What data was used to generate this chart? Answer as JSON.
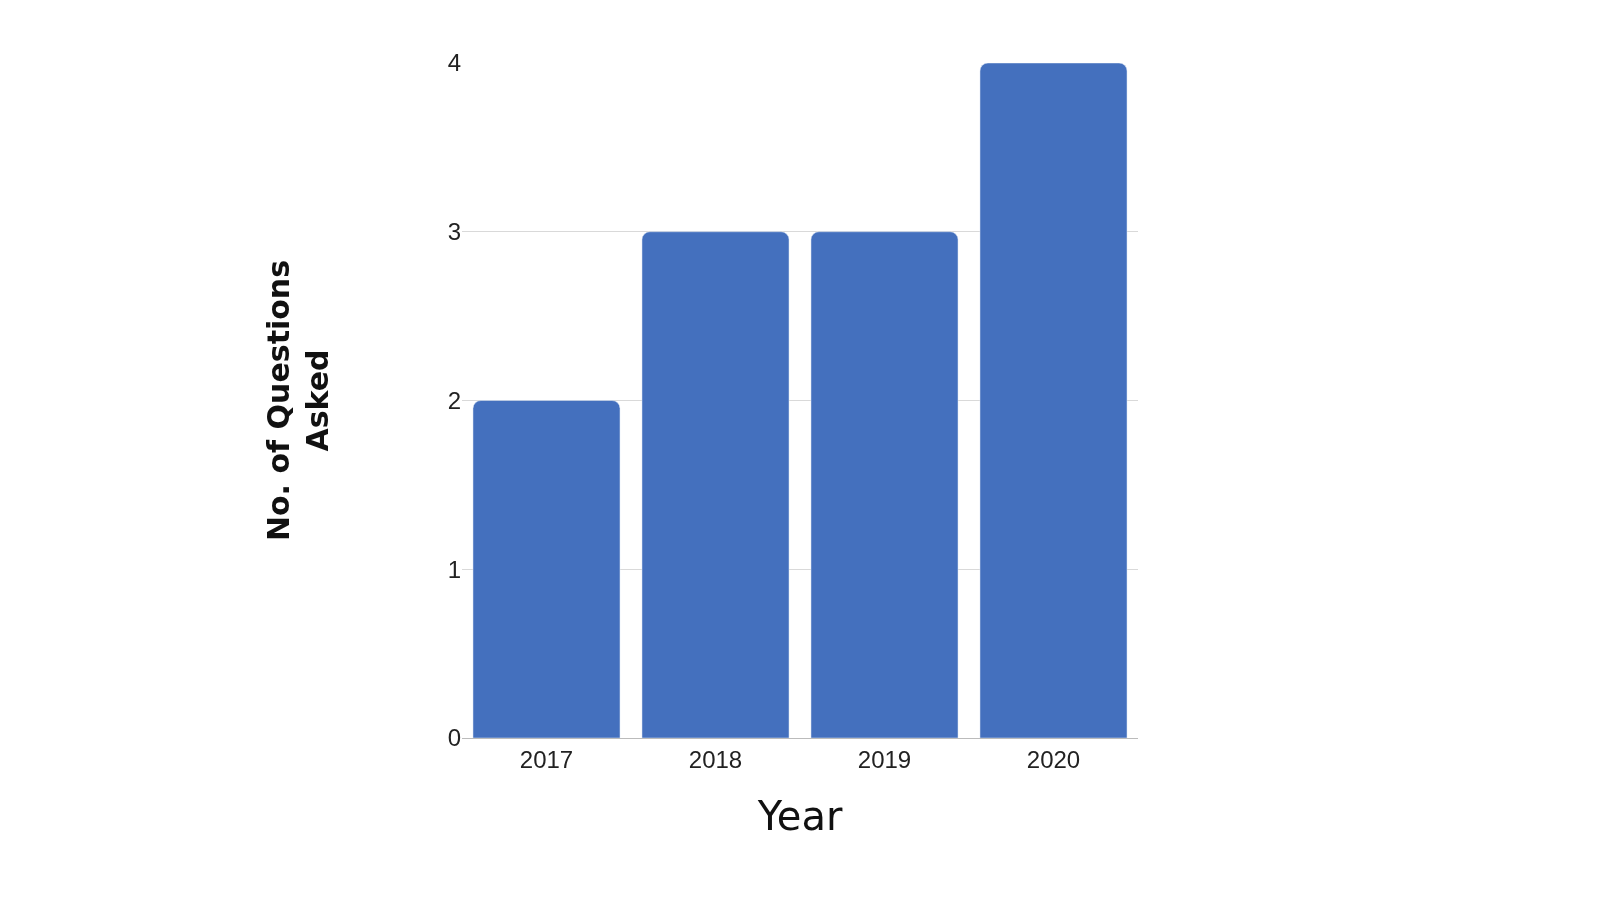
{
  "chart_data": {
    "type": "bar",
    "xlabel": "Year",
    "ylabel": "No. of Questions Asked",
    "categories": [
      "2017",
      "2018",
      "2019",
      "2020"
    ],
    "values": [
      2,
      3,
      3,
      4
    ],
    "color": "#4470be",
    "ylim": [
      0,
      4
    ],
    "yticks": [
      0,
      1,
      2,
      3,
      4
    ],
    "grid": "y"
  }
}
